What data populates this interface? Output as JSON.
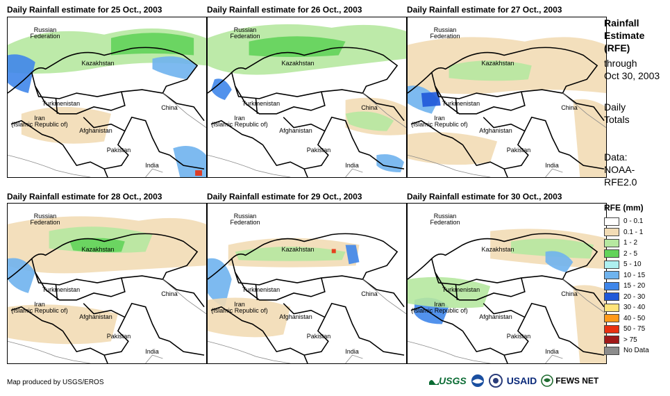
{
  "panels": [
    {
      "title": "Daily Rainfall estimate for 25 Oct., 2003"
    },
    {
      "title": "Daily Rainfall estimate for 26 Oct., 2003"
    },
    {
      "title": "Daily Rainfall estimate for 27 Oct., 2003"
    },
    {
      "title": "Daily Rainfall estimate for 28 Oct., 2003"
    },
    {
      "title": "Daily Rainfall estimate for 29 Oct., 2003"
    },
    {
      "title": "Daily Rainfall estimate for 30 Oct., 2003"
    }
  ],
  "map_labels": {
    "russia_1": "Russian",
    "russia_2": "Federation",
    "kazakhstan": "Kazakhstan",
    "turkmenistan": "Turkmenistan",
    "china": "China",
    "iran_1": "Iran",
    "iran_2": "(Islamic Republic of)",
    "afghanistan": "Afghanistan",
    "pakistan": "Pakistan",
    "india": "India"
  },
  "sidebar": {
    "title_1": "Rainfall",
    "title_2": "Estimate",
    "title_3": "(RFE)",
    "through": "through",
    "date": "Oct 30, 2003",
    "daily": "Daily",
    "totals": "Totals",
    "data": "Data:",
    "source_1": "NOAA-",
    "source_2": "RFE2.0"
  },
  "legend": {
    "title": "RFE (mm)",
    "items": [
      {
        "label": "0 - 0.1",
        "color": "#ffffff"
      },
      {
        "label": "0.1 - 1",
        "color": "#f2dcb5"
      },
      {
        "label": "1 - 2",
        "color": "#b6e8a0"
      },
      {
        "label": "2 - 5",
        "color": "#62d35a"
      },
      {
        "label": "5 - 10",
        "color": "#aef0f0"
      },
      {
        "label": "10 - 15",
        "color": "#6fb3ee"
      },
      {
        "label": "15 - 20",
        "color": "#3f86ea"
      },
      {
        "label": "20 - 30",
        "color": "#1f58d8"
      },
      {
        "label": "30 - 40",
        "color": "#ffe47a"
      },
      {
        "label": "40 - 50",
        "color": "#ff9a1a"
      },
      {
        "label": "50 - 75",
        "color": "#e83010"
      },
      {
        "label": "> 75",
        "color": "#a01818"
      },
      {
        "label": "No Data",
        "color": "#8c8c8c"
      }
    ]
  },
  "footer": {
    "credit": "Map produced by USGS/EROS",
    "logo_usgs": "USGS",
    "logo_usaid": "USAID",
    "logo_fews": "FEWS NET"
  }
}
